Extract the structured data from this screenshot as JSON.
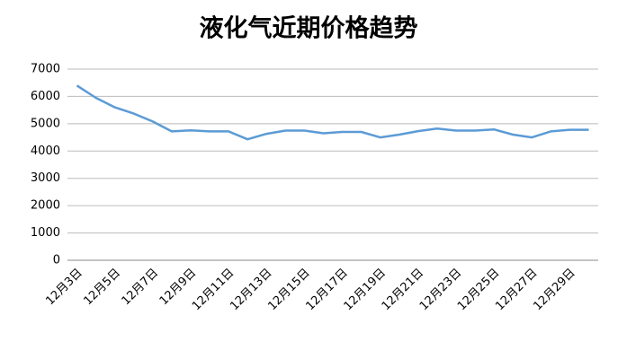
{
  "chart_data": {
    "type": "line",
    "title": "液化气近期价格趋势",
    "categories": [
      "12月3日",
      null,
      "12月5日",
      null,
      "12月7日",
      null,
      "12月9日",
      null,
      "12月11日",
      null,
      "12月13日",
      null,
      "12月15日",
      null,
      "12月17日",
      null,
      "12月19日",
      null,
      "12月21日",
      null,
      "12月23日",
      null,
      "12月25日",
      null,
      "12月27日",
      null,
      "12月29日",
      null
    ],
    "values": [
      6400,
      5950,
      5600,
      5370,
      5080,
      4720,
      4760,
      4720,
      4720,
      4430,
      4630,
      4750,
      4750,
      4650,
      4700,
      4700,
      4500,
      4600,
      4730,
      4820,
      4750,
      4750,
      4790,
      4600,
      4500,
      4720,
      4780,
      4780
    ],
    "color": "#5b9bd5",
    "ylim": [
      0,
      7000
    ],
    "yticks": [
      0,
      1000,
      2000,
      3000,
      4000,
      5000,
      6000,
      7000
    ],
    "grid": true
  }
}
